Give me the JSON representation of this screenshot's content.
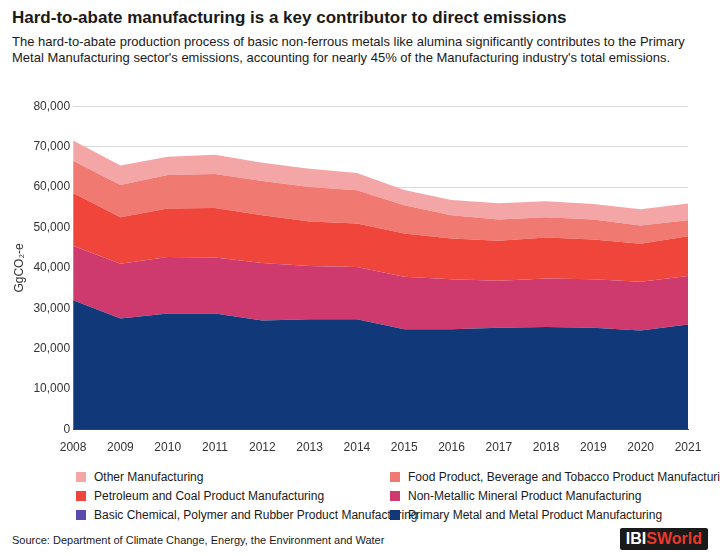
{
  "chart_data": {
    "type": "area",
    "title": "Hard-to-abate manufacturing is a key contributor to direct emissions",
    "subtitle": "The hard-to-abate production process of basic non-ferrous metals like alumina significantly contributes to the Primary Metal Manufacturing sector's emissions, accounting for nearly 45% of the Manufacturing industry's total emissions.",
    "y_label": "GgCO₂-e",
    "source": "Source: Department of Climate Change, Energy, the Environment and Water",
    "brand": "IBISWorld",
    "stacked": true,
    "grid": true,
    "legend": "bottom",
    "categories": [
      "2008",
      "2009",
      "2010",
      "2011",
      "2012",
      "2013",
      "2014",
      "2015",
      "2016",
      "2017",
      "2018",
      "2019",
      "2020",
      "2021"
    ],
    "ylim": [
      0,
      80000
    ],
    "yticks": [
      0,
      {
        "value": 10000,
        "label": "10,000"
      },
      {
        "value": 20000,
        "label": "20,000"
      },
      {
        "value": 30000,
        "label": "30,000"
      },
      {
        "value": 40000,
        "label": "40,000"
      },
      {
        "value": 50000,
        "label": "50,000"
      },
      {
        "value": 60000,
        "label": "60,000"
      },
      {
        "value": 70000,
        "label": "70,000"
      },
      {
        "value": 80000,
        "label": "80,000"
      }
    ],
    "series": [
      {
        "name": "Primary Metal and Metal Product Manufacturing",
        "color": "#11397a",
        "values": [
          32000,
          27500,
          28700,
          28700,
          27000,
          27300,
          27300,
          24800,
          24800,
          25200,
          25400,
          25200,
          24500,
          26000
        ]
      },
      {
        "name": "Basic Chemical, Polymer and Rubber Product Manufacturing",
        "color": "#5b4ab0",
        "values": [
          0,
          0,
          0,
          0,
          0,
          0,
          0,
          0,
          0,
          0,
          0,
          0,
          0,
          0
        ]
      },
      {
        "name": "Non-Metallic Mineral Product Manufacturing",
        "color": "#cf3a6e",
        "values": [
          13500,
          13500,
          14000,
          13900,
          14200,
          13200,
          12900,
          13000,
          12400,
          11600,
          12000,
          12000,
          12100,
          12000
        ]
      },
      {
        "name": "Petroleum and Coal Product Manufacturing",
        "color": "#f0453a",
        "values": [
          13000,
          11500,
          12000,
          12200,
          11800,
          11000,
          10800,
          10700,
          10100,
          9900,
          10100,
          9800,
          9400,
          9800
        ]
      },
      {
        "name": "Food Product, Beverage and Tobacco Product Manufacturing",
        "color": "#f07a72",
        "values": [
          8000,
          8000,
          8300,
          8400,
          8500,
          8500,
          8200,
          7000,
          5700,
          5300,
          5000,
          5000,
          4500,
          4000
        ]
      },
      {
        "name": "Other Manufacturing",
        "color": "#f4a5a5",
        "values": [
          5000,
          4800,
          4500,
          4800,
          4500,
          4500,
          4300,
          3800,
          3800,
          4000,
          4000,
          3800,
          4000,
          4100
        ]
      }
    ]
  }
}
